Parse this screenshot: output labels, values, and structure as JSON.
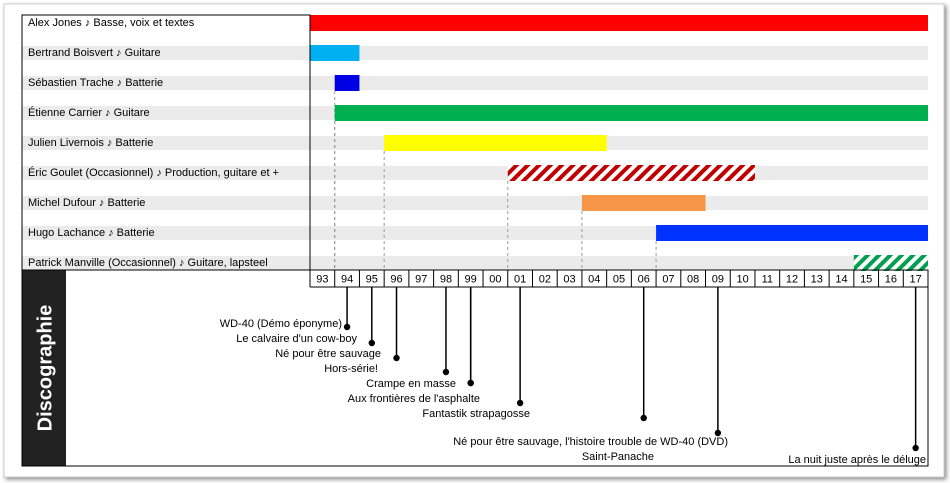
{
  "chart_data": {
    "type": "timeline",
    "xlim": [
      1993,
      2018
    ],
    "xticks": [
      {
        "value": 1993,
        "label": "93"
      },
      {
        "value": 1994,
        "label": "94"
      },
      {
        "value": 1995,
        "label": "95"
      },
      {
        "value": 1996,
        "label": "96"
      },
      {
        "value": 1997,
        "label": "97"
      },
      {
        "value": 1998,
        "label": "98"
      },
      {
        "value": 1999,
        "label": "99"
      },
      {
        "value": 2000,
        "label": "00"
      },
      {
        "value": 2001,
        "label": "01"
      },
      {
        "value": 2002,
        "label": "02"
      },
      {
        "value": 2003,
        "label": "03"
      },
      {
        "value": 2004,
        "label": "04"
      },
      {
        "value": 2005,
        "label": "05"
      },
      {
        "value": 2006,
        "label": "06"
      },
      {
        "value": 2007,
        "label": "07"
      },
      {
        "value": 2008,
        "label": "08"
      },
      {
        "value": 2009,
        "label": "09"
      },
      {
        "value": 2010,
        "label": "10"
      },
      {
        "value": 2011,
        "label": "11"
      },
      {
        "value": 2012,
        "label": "12"
      },
      {
        "value": 2013,
        "label": "13"
      },
      {
        "value": 2014,
        "label": "14"
      },
      {
        "value": 2015,
        "label": "15"
      },
      {
        "value": 2016,
        "label": "16"
      },
      {
        "value": 2017,
        "label": "17"
      }
    ],
    "series": [
      {
        "name": "Alex Jones ♪ Basse, voix et textes",
        "color": "#ff0000",
        "start": 1993,
        "end": 2018,
        "hatched": false
      },
      {
        "name": "Bertrand Boisvert ♪ Guitare",
        "color": "#00b0f0",
        "start": 1993,
        "end": 1995,
        "hatched": false
      },
      {
        "name": "Sébastien Trache ♪ Batterie",
        "color": "#0000e6",
        "start": 1994,
        "end": 1995,
        "hatched": false
      },
      {
        "name": "Étienne Carrier ♪ Guitare",
        "color": "#00b050",
        "start": 1994,
        "end": 2018,
        "hatched": false
      },
      {
        "name": "Julien Livernois ♪ Batterie",
        "color": "#ffff00",
        "start": 1996,
        "end": 2005,
        "hatched": false
      },
      {
        "name": "Éric Goulet (Occasionnel) ♪ Production, guitare et +",
        "color": "#c00000",
        "start": 2001,
        "end": 2011,
        "hatched": true
      },
      {
        "name": "Michel Dufour ♪ Batterie",
        "color": "#f79646",
        "start": 2004,
        "end": 2009,
        "hatched": false
      },
      {
        "name": "Hugo Lachance ♪ Batterie",
        "color": "#0033ff",
        "start": 2007,
        "end": 2018,
        "hatched": false
      },
      {
        "name": "Patrick Manville (Occasionnel) ♪ Guitare, lapsteel",
        "color": "#00a050",
        "start": 2015,
        "end": 2018,
        "hatched": true
      }
    ],
    "discography_title": "Discographie",
    "albums": [
      {
        "title": "WD-40 (Démo éponyme)",
        "year": 1994
      },
      {
        "title": "Le calvaire d'un cow-boy",
        "year": 1995
      },
      {
        "title": "Né pour être sauvage",
        "year": 1996
      },
      {
        "title": "Hors-série!",
        "year": 1998
      },
      {
        "title": "Crampe en masse",
        "year": 1999
      },
      {
        "title": "Aux frontières de l'asphalte",
        "year": 1999
      },
      {
        "title": "Fantastik strapagosse",
        "year": 2001
      },
      {
        "title": "Saint-Panache",
        "year": 2006
      },
      {
        "title": "Né pour être sauvage, l'histoire trouble de WD-40 (DVD)",
        "year": 2009
      },
      {
        "title": "La nuit juste après le déluge",
        "year": 2017
      }
    ]
  }
}
